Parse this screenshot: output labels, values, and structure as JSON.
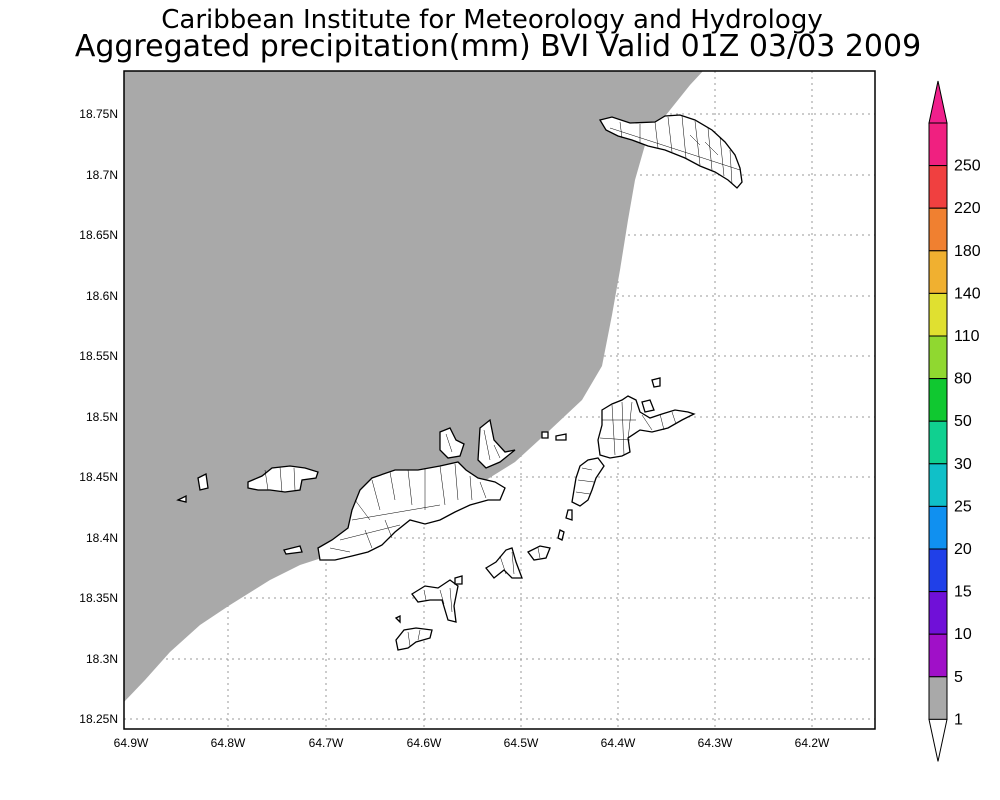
{
  "title_line1": "Caribbean Institute for Meteorology and Hydrology",
  "title_line2": "Aggregated precipitation(mm) BVI Valid 01Z 03/03 2009",
  "axes": {
    "x_ticks": [
      "64.9W",
      "64.8W",
      "64.7W",
      "64.6W",
      "64.5W",
      "64.4W",
      "64.3W",
      "64.2W"
    ],
    "y_ticks": [
      "18.75N",
      "18.7N",
      "18.65N",
      "18.6N",
      "18.55N",
      "18.5N",
      "18.45N",
      "18.4N",
      "18.35N",
      "18.3N",
      "18.25N"
    ],
    "x_range_deg_w": [
      64.9,
      64.14
    ],
    "y_range_deg_n": [
      18.246,
      18.785
    ]
  },
  "colorbar": {
    "levels": [
      "1",
      "5",
      "10",
      "15",
      "20",
      "25",
      "30",
      "50",
      "80",
      "110",
      "140",
      "180",
      "220",
      "250"
    ],
    "colors": [
      "#a9a9a9",
      "#a010c8",
      "#7010d8",
      "#2040e8",
      "#1090f0",
      "#10c0c8",
      "#10d090",
      "#10c830",
      "#90d830",
      "#e0e030",
      "#f0b030",
      "#f08030",
      "#f04040",
      "#f02080"
    ],
    "top_arrow_color": "#f0208c",
    "bottom_arrow_color": "#ffffff"
  },
  "precipitation_region": {
    "color": "#a9a9a9",
    "category": "1"
  }
}
